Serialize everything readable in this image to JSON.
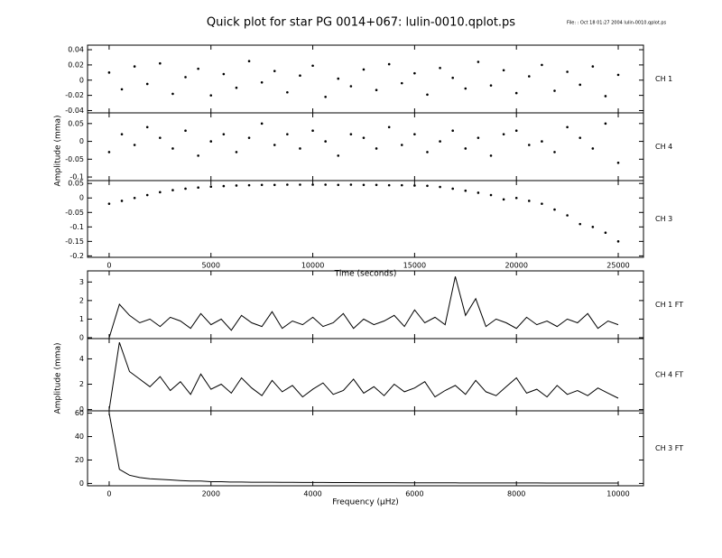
{
  "title": "Quick plot for star PG 0014+067:  lulin-0010.qplot.ps",
  "file_note": "File: : Oct 18 01:27 2004   lulin-0010.qplot.ps",
  "chart_data": [
    {
      "type": "scatter",
      "label": "CH 1",
      "color": "#000000",
      "x": [
        0,
        625,
        1250,
        1875,
        2500,
        3125,
        3750,
        4375,
        5000,
        5625,
        6250,
        6875,
        7500,
        8125,
        8750,
        9375,
        10000,
        10625,
        11250,
        11875,
        12500,
        13125,
        13750,
        14375,
        15000,
        15625,
        16250,
        16875,
        17500,
        18125,
        18750,
        19375,
        20000,
        20625,
        21250,
        21875,
        22500,
        23125,
        23750,
        24375,
        25000
      ],
      "values": [
        0.01,
        -0.012,
        0.018,
        -0.005,
        0.022,
        -0.018,
        0.004,
        0.015,
        -0.02,
        0.008,
        -0.01,
        0.025,
        -0.003,
        0.012,
        -0.016,
        0.006,
        0.019,
        -0.022,
        0.002,
        -0.008,
        0.014,
        -0.013,
        0.021,
        -0.004,
        0.009,
        -0.019,
        0.016,
        0.003,
        -0.011,
        0.024,
        -0.007,
        0.013,
        -0.017,
        0.005,
        0.02,
        -0.014,
        0.011,
        -0.006,
        0.018,
        -0.021,
        0.007
      ],
      "xlim": [
        -1060,
        26240
      ],
      "xticks": [
        0,
        5000,
        10000,
        15000,
        20000,
        25000
      ],
      "ylim": [
        -0.043,
        0.046
      ],
      "yticks": [
        -0.04,
        -0.02,
        0,
        0.02,
        0.04
      ]
    },
    {
      "type": "scatter",
      "label": "CH 4",
      "color": "#000000",
      "ylabel": "Amplitude (mma)",
      "x": [
        0,
        625,
        1250,
        1875,
        2500,
        3125,
        3750,
        4375,
        5000,
        5625,
        6250,
        6875,
        7500,
        8125,
        8750,
        9375,
        10000,
        10625,
        11250,
        11875,
        12500,
        13125,
        13750,
        14375,
        15000,
        15625,
        16250,
        16875,
        17500,
        18125,
        18750,
        19375,
        20000,
        20625,
        21250,
        21875,
        22500,
        23125,
        23750,
        24375,
        25000
      ],
      "values": [
        -0.03,
        0.02,
        -0.01,
        0.04,
        0.01,
        -0.02,
        0.03,
        -0.04,
        0.0,
        0.02,
        -0.03,
        0.01,
        0.05,
        -0.01,
        0.02,
        -0.02,
        0.03,
        0.0,
        -0.04,
        0.02,
        0.01,
        -0.02,
        0.04,
        -0.01,
        0.02,
        -0.03,
        0.0,
        0.03,
        -0.02,
        0.01,
        -0.04,
        0.02,
        0.03,
        -0.01,
        0.0,
        -0.03,
        0.04,
        0.01,
        -0.02,
        0.05,
        -0.06
      ],
      "xlim": [
        -1060,
        26240
      ],
      "xticks": [
        0,
        5000,
        10000,
        15000,
        20000,
        25000
      ],
      "ylim": [
        -0.11,
        0.08
      ],
      "yticks": [
        -0.1,
        -0.05,
        0,
        0.05
      ]
    },
    {
      "type": "scatter",
      "label": "CH 3",
      "color": "#000000",
      "xlabel": "Time (seconds)",
      "x": [
        0,
        625,
        1250,
        1875,
        2500,
        3125,
        3750,
        4375,
        5000,
        5625,
        6250,
        6875,
        7500,
        8125,
        8750,
        9375,
        10000,
        10625,
        11250,
        11875,
        12500,
        13125,
        13750,
        14375,
        15000,
        15625,
        16250,
        16875,
        17500,
        18125,
        18750,
        19375,
        20000,
        20625,
        21250,
        21875,
        22500,
        23125,
        23750,
        24375,
        25000
      ],
      "values": [
        -0.02,
        -0.01,
        0.0,
        0.01,
        0.02,
        0.027,
        0.032,
        0.036,
        0.039,
        0.041,
        0.043,
        0.044,
        0.045,
        0.045,
        0.046,
        0.046,
        0.046,
        0.046,
        0.045,
        0.046,
        0.045,
        0.045,
        0.044,
        0.044,
        0.043,
        0.042,
        0.038,
        0.032,
        0.025,
        0.018,
        0.01,
        -0.005,
        0.0,
        -0.01,
        -0.02,
        -0.04,
        -0.06,
        -0.09,
        -0.1,
        -0.12,
        -0.15
      ],
      "xlim": [
        -1060,
        26240
      ],
      "xticks": [
        0,
        5000,
        10000,
        15000,
        20000,
        25000
      ],
      "ylim": [
        -0.205,
        0.06
      ],
      "yticks": [
        -0.2,
        -0.15,
        -0.1,
        -0.05,
        0,
        0.05
      ]
    },
    {
      "type": "line",
      "label": "CH 1 FT",
      "color": "#000000",
      "x": [
        0,
        200,
        400,
        600,
        800,
        1000,
        1200,
        1400,
        1600,
        1800,
        2000,
        2200,
        2400,
        2600,
        2800,
        3000,
        3200,
        3400,
        3600,
        3800,
        4000,
        4200,
        4400,
        4600,
        4800,
        5000,
        5200,
        5400,
        5600,
        5800,
        6000,
        6200,
        6400,
        6600,
        6800,
        7000,
        7200,
        7400,
        7600,
        7800,
        8000,
        8200,
        8400,
        8600,
        8800,
        9000,
        9200,
        9400,
        9600,
        9800,
        10000
      ],
      "values": [
        0,
        1.8,
        1.2,
        0.8,
        1.0,
        0.6,
        1.1,
        0.9,
        0.5,
        1.3,
        0.7,
        1.0,
        0.4,
        1.2,
        0.8,
        0.6,
        1.4,
        0.5,
        0.9,
        0.7,
        1.1,
        0.6,
        0.8,
        1.3,
        0.5,
        1.0,
        0.7,
        0.9,
        1.2,
        0.6,
        1.5,
        0.8,
        1.1,
        0.7,
        3.3,
        1.2,
        2.1,
        0.6,
        1.0,
        0.8,
        0.5,
        1.1,
        0.7,
        0.9,
        0.6,
        1.0,
        0.8,
        1.3,
        0.5,
        0.9,
        0.7
      ],
      "xlim": [
        -425,
        10496
      ],
      "xticks": [
        0,
        2000,
        4000,
        6000,
        8000,
        10000
      ],
      "ylim": [
        -0.05,
        3.6
      ],
      "yticks": [
        0,
        1,
        2,
        3
      ]
    },
    {
      "type": "line",
      "label": "CH 4 FT",
      "color": "#000000",
      "ylabel": "Amplitude (mma)",
      "x": [
        0,
        200,
        400,
        600,
        800,
        1000,
        1200,
        1400,
        1600,
        1800,
        2000,
        2200,
        2400,
        2600,
        2800,
        3000,
        3200,
        3400,
        3600,
        3800,
        4000,
        4200,
        4400,
        4600,
        4800,
        5000,
        5200,
        5400,
        5600,
        5800,
        6000,
        6200,
        6400,
        6600,
        6800,
        7000,
        7200,
        7400,
        7600,
        7800,
        8000,
        8200,
        8400,
        8600,
        8800,
        9000,
        9200,
        9400,
        9600,
        9800,
        10000
      ],
      "values": [
        0,
        5.3,
        3.0,
        2.4,
        1.8,
        2.6,
        1.5,
        2.2,
        1.2,
        2.8,
        1.6,
        2.0,
        1.3,
        2.5,
        1.7,
        1.1,
        2.3,
        1.4,
        1.9,
        1.0,
        1.6,
        2.1,
        1.2,
        1.5,
        2.4,
        1.3,
        1.8,
        1.1,
        2.0,
        1.4,
        1.7,
        2.2,
        1.0,
        1.5,
        1.9,
        1.2,
        2.3,
        1.4,
        1.1,
        1.8,
        2.5,
        1.3,
        1.6,
        1.0,
        1.9,
        1.2,
        1.5,
        1.1,
        1.7,
        1.3,
        0.9
      ],
      "xlim": [
        -425,
        10496
      ],
      "xticks": [
        0,
        2000,
        4000,
        6000,
        8000,
        10000
      ],
      "ylim": [
        -0.1,
        5.6
      ],
      "yticks": [
        0,
        2,
        4
      ]
    },
    {
      "type": "line",
      "label": "CH 3 FT",
      "color": "#000000",
      "xlabel": "Frequency (μHz)",
      "x": [
        0,
        200,
        400,
        600,
        800,
        1000,
        1200,
        1400,
        1600,
        1800,
        2000,
        2200,
        2400,
        2600,
        2800,
        3000,
        3200,
        3400,
        3600,
        3800,
        4000,
        4200,
        4400,
        4600,
        4800,
        5000,
        5200,
        5400,
        5600,
        5800,
        6000,
        6200,
        6400,
        6600,
        6800,
        7000,
        7200,
        7400,
        7600,
        7800,
        8000,
        8200,
        8400,
        8600,
        8800,
        9000,
        9200,
        9400,
        9600,
        9800,
        10000
      ],
      "values": [
        60,
        12,
        7,
        5,
        4,
        3.5,
        3,
        2.5,
        2,
        2,
        1.5,
        1.5,
        1.2,
        1.2,
        1,
        1,
        1,
        0.9,
        0.9,
        0.8,
        0.8,
        0.8,
        0.7,
        0.7,
        0.7,
        0.6,
        0.6,
        0.6,
        0.6,
        0.5,
        0.5,
        0.5,
        0.5,
        0.5,
        0.5,
        0.4,
        0.4,
        0.4,
        0.4,
        0.4,
        0.4,
        0.4,
        0.4,
        0.3,
        0.3,
        0.3,
        0.3,
        0.3,
        0.3,
        0.3,
        0.3
      ],
      "xlim": [
        -425,
        10496
      ],
      "xticks": [
        0,
        2000,
        4000,
        6000,
        8000,
        10000
      ],
      "ylim": [
        -2,
        62
      ],
      "yticks": [
        0,
        20,
        40,
        60
      ]
    }
  ]
}
